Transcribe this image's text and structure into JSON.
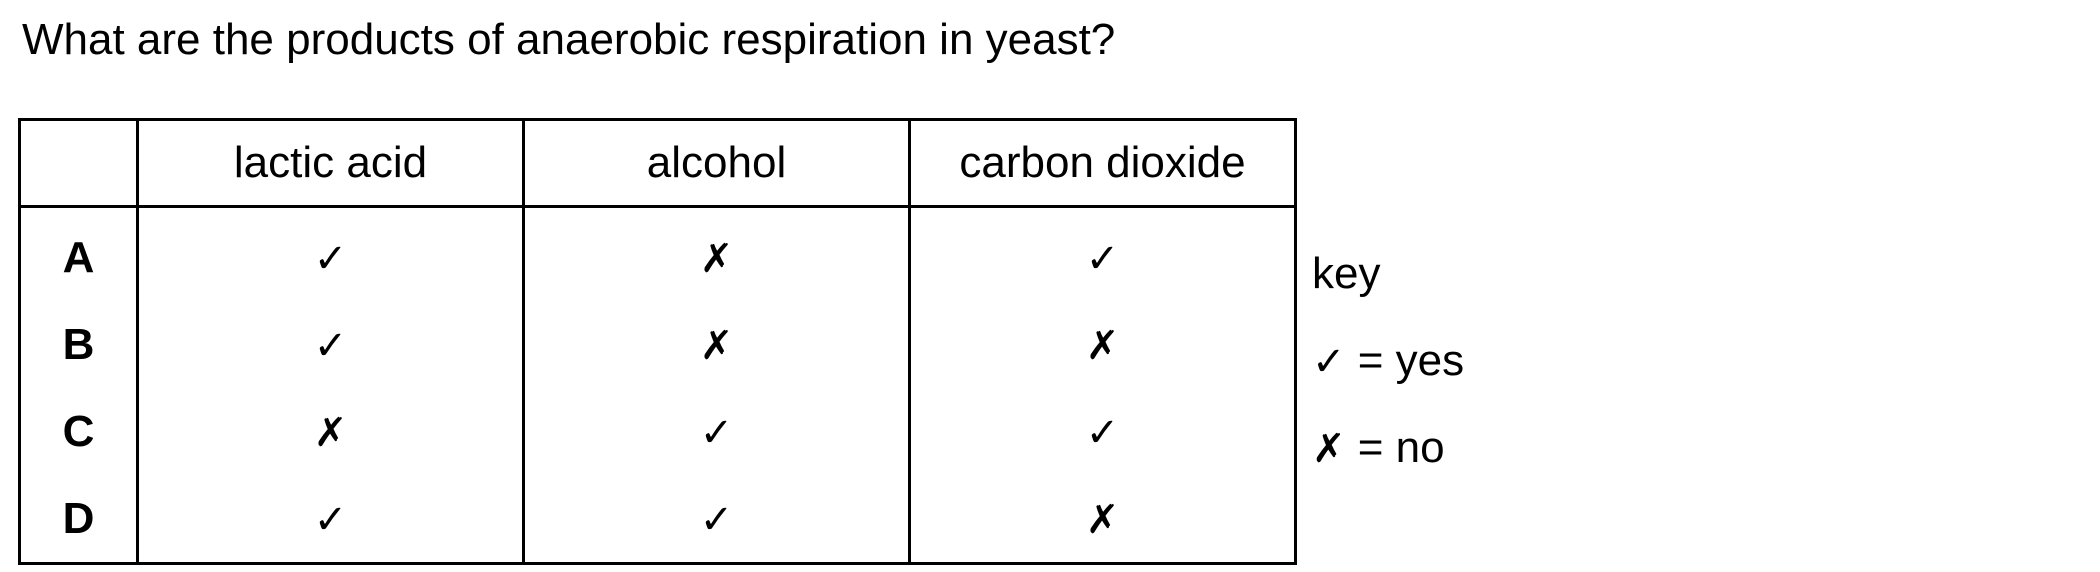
{
  "question": "What are the products of anaerobic respiration in yeast?",
  "table": {
    "headers": [
      "",
      "lactic acid",
      "alcohol",
      "carbon dioxide"
    ],
    "rows": [
      {
        "label": "A",
        "cells": [
          "✓",
          "✗",
          "✓"
        ]
      },
      {
        "label": "B",
        "cells": [
          "✓",
          "✗",
          "✗"
        ]
      },
      {
        "label": "C",
        "cells": [
          "✗",
          "✓",
          "✓"
        ]
      },
      {
        "label": "D",
        "cells": [
          "✓",
          "✓",
          "✗"
        ]
      }
    ]
  },
  "key": {
    "title": "key",
    "yes_symbol": "✓",
    "yes_text": " = yes",
    "no_symbol": "✗",
    "no_text": " = no"
  }
}
